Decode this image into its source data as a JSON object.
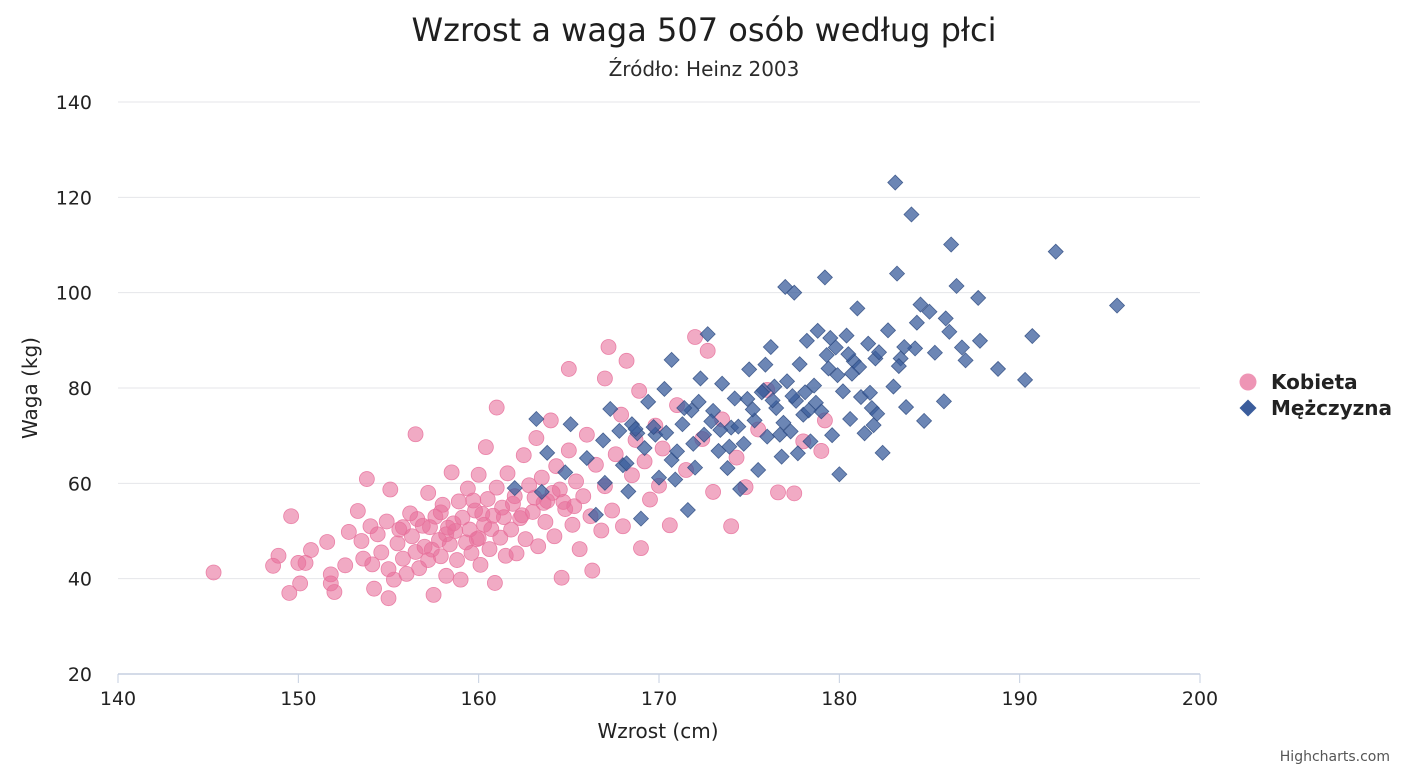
{
  "chart_data": {
    "type": "scatter",
    "title": "Wzrost a waga 507 osób według płci",
    "subtitle": "Źródło: Heinz 2003",
    "xlabel": "Wzrost (cm)",
    "ylabel": "Waga (kg)",
    "xlim": [
      140,
      200
    ],
    "ylim": [
      20,
      140
    ],
    "x_ticks": [
      140,
      150,
      160,
      170,
      180,
      190,
      200
    ],
    "y_ticks": [
      20,
      40,
      60,
      80,
      100,
      120,
      140
    ],
    "grid": true,
    "legend_position": "right",
    "credit": "Highcharts.com",
    "series": [
      {
        "name": "Kobieta",
        "color": "#e8729c",
        "marker": "circle",
        "points": [
          [
            145.3,
            41.3
          ],
          [
            148.6,
            42.7
          ],
          [
            148.9,
            44.8
          ],
          [
            149.5,
            37.0
          ],
          [
            149.6,
            53.1
          ],
          [
            150.0,
            43.3
          ],
          [
            150.1,
            39.0
          ],
          [
            150.4,
            43.3
          ],
          [
            150.7,
            46.0
          ],
          [
            151.6,
            47.7
          ],
          [
            151.8,
            40.9
          ],
          [
            151.8,
            39.0
          ],
          [
            152.0,
            37.2
          ],
          [
            152.6,
            42.8
          ],
          [
            152.8,
            49.8
          ],
          [
            153.3,
            54.2
          ],
          [
            153.5,
            47.9
          ],
          [
            153.6,
            44.2
          ],
          [
            153.8,
            60.9
          ],
          [
            154.0,
            51.0
          ],
          [
            154.1,
            43.0
          ],
          [
            154.2,
            37.9
          ],
          [
            154.4,
            49.3
          ],
          [
            154.6,
            45.5
          ],
          [
            154.9,
            52.0
          ],
          [
            155.0,
            42.0
          ],
          [
            155.0,
            35.9
          ],
          [
            155.1,
            58.7
          ],
          [
            155.3,
            39.8
          ],
          [
            155.5,
            47.4
          ],
          [
            155.6,
            50.3
          ],
          [
            155.8,
            44.2
          ],
          [
            156.0,
            41.0
          ],
          [
            156.2,
            53.7
          ],
          [
            156.3,
            48.9
          ],
          [
            156.5,
            45.6
          ],
          [
            156.5,
            70.3
          ],
          [
            156.7,
            42.2
          ],
          [
            156.9,
            51.1
          ],
          [
            157.0,
            46.7
          ],
          [
            157.2,
            43.9
          ],
          [
            157.2,
            58.0
          ],
          [
            157.3,
            50.8
          ],
          [
            157.5,
            36.6
          ],
          [
            157.6,
            53.0
          ],
          [
            157.8,
            48.1
          ],
          [
            157.9,
            44.7
          ],
          [
            158.0,
            55.5
          ],
          [
            158.2,
            40.6
          ],
          [
            158.2,
            49.3
          ],
          [
            158.4,
            47.2
          ],
          [
            158.5,
            62.3
          ],
          [
            158.6,
            51.6
          ],
          [
            158.8,
            43.9
          ],
          [
            158.9,
            56.2
          ],
          [
            159.0,
            39.8
          ],
          [
            159.1,
            52.8
          ],
          [
            159.3,
            47.6
          ],
          [
            159.4,
            58.9
          ],
          [
            159.5,
            50.3
          ],
          [
            159.6,
            45.4
          ],
          [
            159.8,
            54.3
          ],
          [
            160.0,
            48.5
          ],
          [
            160.0,
            61.8
          ],
          [
            160.1,
            42.9
          ],
          [
            160.3,
            51.3
          ],
          [
            160.4,
            67.6
          ],
          [
            160.5,
            56.7
          ],
          [
            160.6,
            46.2
          ],
          [
            160.8,
            53.2
          ],
          [
            160.9,
            39.1
          ],
          [
            161.0,
            59.1
          ],
          [
            161.0,
            75.9
          ],
          [
            161.2,
            48.6
          ],
          [
            161.3,
            54.9
          ],
          [
            161.5,
            44.8
          ],
          [
            161.6,
            62.1
          ],
          [
            161.8,
            50.3
          ],
          [
            162.0,
            57.3
          ],
          [
            162.1,
            45.3
          ],
          [
            162.3,
            52.7
          ],
          [
            162.5,
            65.9
          ],
          [
            162.6,
            48.3
          ],
          [
            162.8,
            59.6
          ],
          [
            163.0,
            54.0
          ],
          [
            163.2,
            69.5
          ],
          [
            163.3,
            46.8
          ],
          [
            163.5,
            61.2
          ],
          [
            163.7,
            51.9
          ],
          [
            163.8,
            56.3
          ],
          [
            164.0,
            73.2
          ],
          [
            164.2,
            48.9
          ],
          [
            164.3,
            63.6
          ],
          [
            164.5,
            58.7
          ],
          [
            164.6,
            40.2
          ],
          [
            164.8,
            54.6
          ],
          [
            165.0,
            66.9
          ],
          [
            165.0,
            84.0
          ],
          [
            165.2,
            51.3
          ],
          [
            165.4,
            60.4
          ],
          [
            165.6,
            46.2
          ],
          [
            165.8,
            57.3
          ],
          [
            166.0,
            70.2
          ],
          [
            166.2,
            53.1
          ],
          [
            166.3,
            41.7
          ],
          [
            166.5,
            63.9
          ],
          [
            166.8,
            50.1
          ],
          [
            167.0,
            82.0
          ],
          [
            167.0,
            59.4
          ],
          [
            167.2,
            88.6
          ],
          [
            167.4,
            54.3
          ],
          [
            167.6,
            66.1
          ],
          [
            167.9,
            74.4
          ],
          [
            168.0,
            51.0
          ],
          [
            168.2,
            85.7
          ],
          [
            168.5,
            61.7
          ],
          [
            168.7,
            69.1
          ],
          [
            168.9,
            79.4
          ],
          [
            169.0,
            46.4
          ],
          [
            169.2,
            64.6
          ],
          [
            169.5,
            56.6
          ],
          [
            169.8,
            72.1
          ],
          [
            170.0,
            59.5
          ],
          [
            170.2,
            67.3
          ],
          [
            170.6,
            51.2
          ],
          [
            171.0,
            76.4
          ],
          [
            171.5,
            62.8
          ],
          [
            172.0,
            90.7
          ],
          [
            172.4,
            69.3
          ],
          [
            172.7,
            87.8
          ],
          [
            173.0,
            58.2
          ],
          [
            173.5,
            73.4
          ],
          [
            174.0,
            51.0
          ],
          [
            174.3,
            65.4
          ],
          [
            174.8,
            59.2
          ],
          [
            175.5,
            71.3
          ],
          [
            176.0,
            79.6
          ],
          [
            176.6,
            58.1
          ],
          [
            177.5,
            57.9
          ],
          [
            178.0,
            68.8
          ],
          [
            179.0,
            66.8
          ],
          [
            179.2,
            73.2
          ],
          [
            157.9,
            53.9
          ],
          [
            158.3,
            50.7
          ],
          [
            159.7,
            56.4
          ],
          [
            160.2,
            53.6
          ],
          [
            160.7,
            50.4
          ],
          [
            161.4,
            52.9
          ],
          [
            161.9,
            55.7
          ],
          [
            162.4,
            53.3
          ],
          [
            163.1,
            57.0
          ],
          [
            163.6,
            55.9
          ],
          [
            164.1,
            58.0
          ],
          [
            164.7,
            56.1
          ],
          [
            165.3,
            55.2
          ],
          [
            155.8,
            50.8
          ],
          [
            156.6,
            52.5
          ],
          [
            157.4,
            46.1
          ],
          [
            158.7,
            50.0
          ],
          [
            159.9,
            48.3
          ]
        ]
      },
      {
        "name": "Mężczyzna",
        "color": "#3b5d9c",
        "marker": "diamond",
        "points": [
          [
            162.0,
            59.0
          ],
          [
            163.2,
            73.5
          ],
          [
            163.5,
            58.2
          ],
          [
            163.8,
            66.4
          ],
          [
            164.8,
            62.3
          ],
          [
            165.1,
            72.4
          ],
          [
            166.0,
            65.3
          ],
          [
            166.5,
            53.4
          ],
          [
            167.0,
            60.1
          ],
          [
            167.3,
            75.6
          ],
          [
            167.8,
            71.0
          ],
          [
            168.0,
            63.8
          ],
          [
            168.3,
            58.3
          ],
          [
            168.5,
            72.4
          ],
          [
            168.8,
            70.5
          ],
          [
            169.0,
            52.6
          ],
          [
            169.4,
            77.1
          ],
          [
            169.8,
            70.2
          ],
          [
            170.0,
            61.2
          ],
          [
            170.3,
            79.8
          ],
          [
            170.7,
            64.9
          ],
          [
            170.7,
            85.9
          ],
          [
            171.0,
            66.7
          ],
          [
            171.3,
            72.4
          ],
          [
            171.6,
            54.4
          ],
          [
            171.8,
            75.3
          ],
          [
            172.0,
            63.3
          ],
          [
            172.3,
            82.0
          ],
          [
            172.5,
            70.2
          ],
          [
            172.7,
            91.3
          ],
          [
            173.0,
            75.2
          ],
          [
            173.3,
            66.8
          ],
          [
            173.5,
            80.9
          ],
          [
            173.8,
            63.2
          ],
          [
            174.0,
            71.7
          ],
          [
            174.2,
            77.8
          ],
          [
            174.5,
            58.8
          ],
          [
            174.7,
            68.3
          ],
          [
            175.0,
            83.9
          ],
          [
            175.3,
            73.2
          ],
          [
            175.5,
            62.8
          ],
          [
            175.8,
            79.5
          ],
          [
            176.0,
            69.8
          ],
          [
            176.2,
            88.6
          ],
          [
            176.5,
            75.8
          ],
          [
            176.8,
            65.6
          ],
          [
            177.0,
            101.2
          ],
          [
            177.1,
            81.4
          ],
          [
            177.3,
            70.9
          ],
          [
            177.5,
            100.0
          ],
          [
            177.6,
            77.3
          ],
          [
            177.8,
            85.0
          ],
          [
            178.0,
            74.4
          ],
          [
            178.2,
            89.9
          ],
          [
            178.4,
            68.8
          ],
          [
            178.6,
            80.5
          ],
          [
            178.8,
            92.0
          ],
          [
            179.0,
            75.1
          ],
          [
            179.2,
            103.2
          ],
          [
            179.4,
            84.1
          ],
          [
            179.6,
            70.1
          ],
          [
            179.8,
            88.5
          ],
          [
            180.0,
            61.9
          ],
          [
            180.2,
            79.3
          ],
          [
            180.4,
            91.0
          ],
          [
            180.6,
            73.5
          ],
          [
            180.8,
            85.6
          ],
          [
            181.0,
            96.7
          ],
          [
            181.2,
            78.1
          ],
          [
            181.4,
            70.5
          ],
          [
            181.6,
            89.3
          ],
          [
            181.8,
            75.8
          ],
          [
            182.0,
            86.2
          ],
          [
            182.4,
            66.4
          ],
          [
            182.7,
            92.1
          ],
          [
            183.0,
            80.3
          ],
          [
            183.1,
            123.1
          ],
          [
            183.2,
            104.0
          ],
          [
            183.4,
            86.2
          ],
          [
            183.7,
            76.0
          ],
          [
            184.0,
            116.4
          ],
          [
            184.2,
            88.3
          ],
          [
            184.5,
            97.5
          ],
          [
            184.7,
            73.1
          ],
          [
            185.0,
            96.0
          ],
          [
            185.3,
            87.4
          ],
          [
            185.8,
            77.2
          ],
          [
            186.1,
            91.8
          ],
          [
            186.2,
            110.1
          ],
          [
            186.5,
            101.4
          ],
          [
            186.8,
            88.5
          ],
          [
            187.0,
            85.8
          ],
          [
            187.7,
            98.9
          ],
          [
            187.8,
            89.9
          ],
          [
            188.8,
            84.0
          ],
          [
            190.3,
            81.7
          ],
          [
            190.7,
            90.9
          ],
          [
            192.0,
            108.6
          ],
          [
            195.4,
            97.3
          ],
          [
            185.9,
            94.6
          ],
          [
            184.3,
            93.7
          ],
          [
            183.3,
            84.6
          ],
          [
            182.2,
            87.5
          ],
          [
            181.7,
            79.0
          ],
          [
            180.5,
            87.1
          ],
          [
            179.5,
            90.5
          ],
          [
            178.1,
            79.1
          ],
          [
            176.9,
            72.7
          ],
          [
            176.4,
            80.3
          ],
          [
            175.9,
            84.9
          ],
          [
            175.2,
            75.5
          ],
          [
            174.9,
            77.7
          ],
          [
            174.4,
            71.9
          ],
          [
            173.9,
            67.7
          ],
          [
            173.4,
            71.2
          ],
          [
            172.9,
            73.0
          ],
          [
            172.2,
            77.1
          ],
          [
            171.9,
            68.3
          ],
          [
            171.4,
            75.8
          ],
          [
            170.9,
            60.8
          ],
          [
            170.4,
            70.6
          ],
          [
            169.7,
            71.8
          ],
          [
            169.2,
            67.4
          ],
          [
            168.7,
            71.4
          ],
          [
            168.2,
            64.2
          ],
          [
            166.9,
            69.0
          ],
          [
            176.7,
            70.2
          ],
          [
            177.7,
            66.3
          ],
          [
            178.7,
            76.9
          ],
          [
            179.9,
            82.7
          ],
          [
            181.1,
            84.4
          ],
          [
            182.1,
            74.6
          ],
          [
            183.6,
            88.6
          ],
          [
            175.7,
            79.1
          ],
          [
            176.3,
            77.4
          ],
          [
            177.4,
            78.3
          ],
          [
            178.3,
            75.3
          ],
          [
            179.3,
            86.9
          ],
          [
            180.7,
            83.0
          ],
          [
            181.9,
            72.2
          ]
        ]
      }
    ]
  }
}
